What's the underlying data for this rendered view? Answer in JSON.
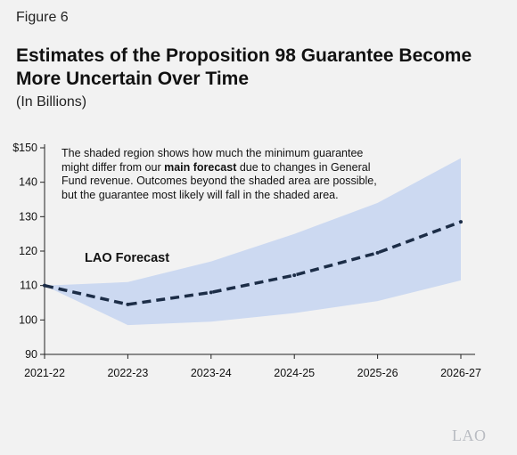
{
  "figure_label": "Figure 6",
  "note": {
    "part1": "The shaded region shows how much the minimum guarantee might differ from our ",
    "bold": "main forecast",
    "part2": " due to changes in General Fund revenue. Outcomes beyond the shaded area are possible, but the guarantee most likely will fall in the shaded area."
  },
  "logo_text": "LAO",
  "colors": {
    "band": "#ccd9f1",
    "line": "#1c2d47",
    "axis": "#222222",
    "background": "#f2f2f2"
  },
  "chart_data": {
    "type": "line",
    "title": "Estimates of the Proposition 98 Guarantee Become More Uncertain Over Time",
    "subtitle": "(In Billions)",
    "categories": [
      "2021-22",
      "2022-23",
      "2023-24",
      "2024-25",
      "2025-26",
      "2026-27"
    ],
    "series": [
      {
        "name": "LAO Forecast",
        "values": [
          110,
          104.5,
          108,
          113,
          119.5,
          128.5
        ],
        "style": "dashed"
      }
    ],
    "band": {
      "upper": [
        110,
        111,
        117,
        125,
        134,
        147
      ],
      "lower": [
        110,
        98.5,
        99.5,
        102,
        105.5,
        111.5
      ]
    },
    "ylim": [
      90,
      150
    ],
    "yticks": [
      90,
      100,
      110,
      120,
      130,
      140,
      150
    ],
    "ytick_labels": [
      "90",
      "100",
      "110",
      "120",
      "130",
      "140",
      "$150"
    ],
    "xlabel": "",
    "ylabel": "",
    "grid": false
  }
}
